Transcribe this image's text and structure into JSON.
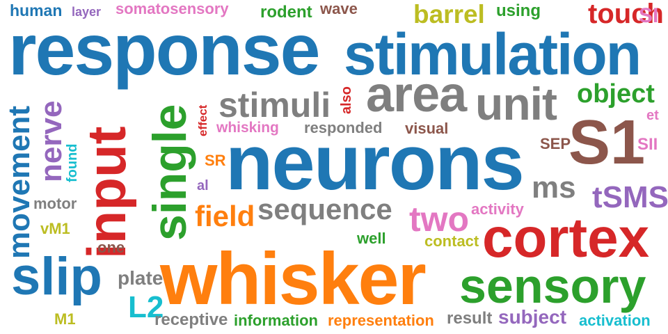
{
  "word_cloud": {
    "palette": {
      "blue": "#1f77b4",
      "orange": "#ff7f0e",
      "green": "#2ca02c",
      "red": "#d62728",
      "purple": "#9467bd",
      "brown": "#8c564b",
      "pink": "#e377c2",
      "gray": "#7f7f7f",
      "olive": "#bcbd22",
      "cyan": "#17becf"
    },
    "words": {
      "w01": {
        "text": "human",
        "color": "#1f77b4"
      },
      "w02": {
        "text": "layer",
        "color": "#9467bd"
      },
      "w03": {
        "text": "somatosensory",
        "color": "#e377c2"
      },
      "w04": {
        "text": "rodent",
        "color": "#2ca02c"
      },
      "w05": {
        "text": "wave",
        "color": "#8c564b"
      },
      "w06": {
        "text": "barrel",
        "color": "#bcbd22"
      },
      "w07": {
        "text": "using",
        "color": "#2ca02c"
      },
      "w08": {
        "text": "touch",
        "color": "#d62728"
      },
      "w09": {
        "text": "SI",
        "color": "#e377c2"
      },
      "w10": {
        "text": "response",
        "color": "#1f77b4"
      },
      "w11": {
        "text": "stimulation",
        "color": "#1f77b4"
      },
      "w12": {
        "text": "area",
        "color": "#7f7f7f"
      },
      "w13": {
        "text": "unit",
        "color": "#7f7f7f"
      },
      "w14": {
        "text": "object",
        "color": "#2ca02c"
      },
      "w15": {
        "text": "stimuli",
        "color": "#7f7f7f"
      },
      "w16": {
        "text": "also",
        "color": "#d62728"
      },
      "w17": {
        "text": "effect",
        "color": "#d62728"
      },
      "w18": {
        "text": "whisking",
        "color": "#e377c2"
      },
      "w19": {
        "text": "responded",
        "color": "#7f7f7f"
      },
      "w20": {
        "text": "visual",
        "color": "#8c564b"
      },
      "w21": {
        "text": "et",
        "color": "#e377c2"
      },
      "w22": {
        "text": "SEP",
        "color": "#8c564b"
      },
      "w23": {
        "text": "S1",
        "color": "#8c564b"
      },
      "w24": {
        "text": "SII",
        "color": "#e377c2"
      },
      "w25": {
        "text": "movement",
        "color": "#1f77b4"
      },
      "w26": {
        "text": "nerve",
        "color": "#9467bd"
      },
      "w27": {
        "text": "found",
        "color": "#17becf"
      },
      "w28": {
        "text": "input",
        "color": "#d62728"
      },
      "w29": {
        "text": "single",
        "color": "#2ca02c"
      },
      "w30": {
        "text": "neurons",
        "color": "#1f77b4"
      },
      "w31": {
        "text": "SR",
        "color": "#ff7f0e"
      },
      "w32": {
        "text": "al",
        "color": "#9467bd"
      },
      "w33": {
        "text": "ms",
        "color": "#7f7f7f"
      },
      "w34": {
        "text": "tSMS",
        "color": "#9467bd"
      },
      "w35": {
        "text": "motor",
        "color": "#7f7f7f"
      },
      "w36": {
        "text": "field",
        "color": "#ff7f0e"
      },
      "w37": {
        "text": "sequence",
        "color": "#7f7f7f"
      },
      "w38": {
        "text": "two",
        "color": "#e377c2"
      },
      "w39": {
        "text": "activity",
        "color": "#e377c2"
      },
      "w40": {
        "text": "vM1",
        "color": "#bcbd22"
      },
      "w41": {
        "text": "cortex",
        "color": "#d62728"
      },
      "w42": {
        "text": "well",
        "color": "#2ca02c"
      },
      "w43": {
        "text": "contact",
        "color": "#bcbd22"
      },
      "w44": {
        "text": "one",
        "color": "#8c564b"
      },
      "w45": {
        "text": "slip",
        "color": "#1f77b4"
      },
      "w46": {
        "text": "whisker",
        "color": "#ff7f0e"
      },
      "w47": {
        "text": "plate",
        "color": "#7f7f7f"
      },
      "w48": {
        "text": "sensory",
        "color": "#2ca02c"
      },
      "w49": {
        "text": "L2",
        "color": "#17becf"
      },
      "w50": {
        "text": "M1",
        "color": "#bcbd22"
      },
      "w51": {
        "text": "receptive",
        "color": "#7f7f7f"
      },
      "w52": {
        "text": "information",
        "color": "#2ca02c"
      },
      "w53": {
        "text": "representation",
        "color": "#ff7f0e"
      },
      "w54": {
        "text": "result",
        "color": "#7f7f7f"
      },
      "w55": {
        "text": "subject",
        "color": "#9467bd"
      },
      "w56": {
        "text": "activation",
        "color": "#17becf"
      }
    }
  }
}
